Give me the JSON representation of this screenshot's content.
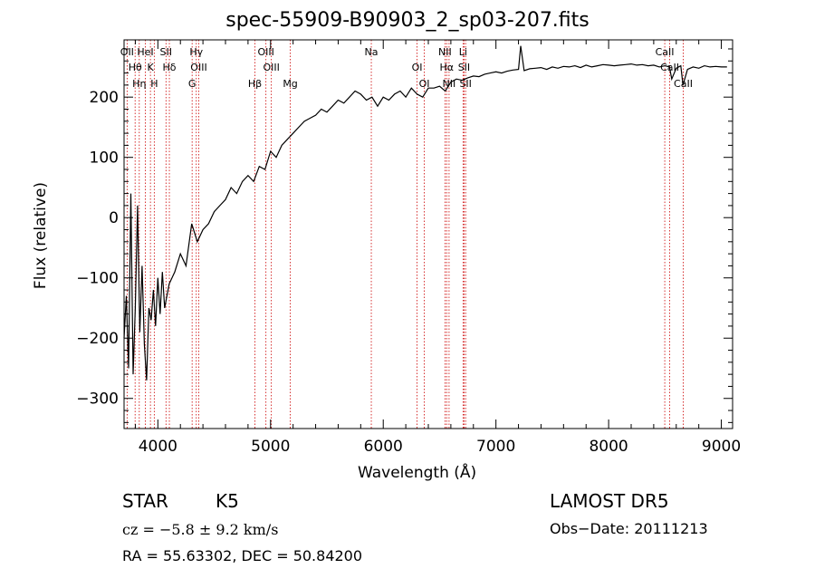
{
  "chart_data": {
    "type": "line",
    "title": "spec-55909-B90903_2_sp03-207.fits",
    "xlabel": "Wavelength (Å)",
    "ylabel": "Flux (relative)",
    "xlim": [
      3700,
      9100
    ],
    "ylim": [
      -350,
      295
    ],
    "xticks": [
      4000,
      5000,
      6000,
      7000,
      8000,
      9000
    ],
    "yticks": [
      -300,
      -200,
      -100,
      0,
      100,
      200
    ],
    "grid": false,
    "series": [
      {
        "x": [
          3700,
          3720,
          3740,
          3760,
          3780,
          3800,
          3820,
          3840,
          3860,
          3880,
          3900,
          3920,
          3940,
          3960,
          3980,
          4000,
          4020,
          4040,
          4060,
          4080,
          4100,
          4150,
          4200,
          4250,
          4300,
          4350,
          4400,
          4450,
          4500,
          4550,
          4600,
          4650,
          4700,
          4750,
          4800,
          4850,
          4900,
          4950,
          5000,
          5050,
          5100,
          5150,
          5200,
          5250,
          5300,
          5350,
          5400,
          5450,
          5500,
          5550,
          5600,
          5650,
          5700,
          5750,
          5800,
          5850,
          5900,
          5950,
          6000,
          6050,
          6100,
          6150,
          6200,
          6250,
          6300,
          6350,
          6400,
          6450,
          6500,
          6550,
          6600,
          6650,
          6700,
          6750,
          6800,
          6850,
          6900,
          6950,
          7000,
          7050,
          7100,
          7150,
          7200,
          7220,
          7250,
          7300,
          7350,
          7400,
          7450,
          7500,
          7550,
          7600,
          7650,
          7700,
          7750,
          7800,
          7850,
          7900,
          7950,
          8000,
          8050,
          8100,
          8150,
          8200,
          8250,
          8300,
          8350,
          8400,
          8450,
          8500,
          8540,
          8560,
          8600,
          8640,
          8660,
          8700,
          8750,
          8800,
          8850,
          8900,
          8950,
          9000,
          9050
        ],
        "y": [
          -200,
          -130,
          -250,
          40,
          -260,
          -150,
          20,
          -190,
          -80,
          -210,
          -270,
          -150,
          -170,
          -120,
          -180,
          -100,
          -160,
          -90,
          -150,
          -130,
          -110,
          -90,
          -60,
          -80,
          -10,
          -40,
          -20,
          -10,
          10,
          20,
          30,
          50,
          40,
          60,
          70,
          60,
          85,
          80,
          110,
          100,
          120,
          130,
          140,
          150,
          160,
          165,
          170,
          180,
          175,
          185,
          195,
          190,
          200,
          210,
          205,
          195,
          200,
          185,
          200,
          195,
          205,
          210,
          200,
          215,
          205,
          200,
          215,
          215,
          218,
          210,
          225,
          230,
          228,
          232,
          235,
          234,
          238,
          240,
          242,
          240,
          243,
          245,
          246,
          285,
          244,
          247,
          248,
          249,
          246,
          250,
          248,
          251,
          250,
          252,
          249,
          253,
          250,
          252,
          254,
          253,
          252,
          253,
          254,
          255,
          253,
          254,
          252,
          253,
          250,
          252,
          250,
          230,
          248,
          252,
          220,
          246,
          250,
          248,
          252,
          250,
          251,
          250,
          250
        ]
      }
    ],
    "lines": [
      {
        "x": 3727,
        "label": "OII"
      },
      {
        "x": 3798,
        "label": "Hθ"
      },
      {
        "x": 3835,
        "label": "Hη"
      },
      {
        "x": 3889,
        "label": "HeI"
      },
      {
        "x": 3934,
        "label": "K"
      },
      {
        "x": 3968,
        "label": "H"
      },
      {
        "x": 4072,
        "label": "SII"
      },
      {
        "x": 4102,
        "label": "Hδ"
      },
      {
        "x": 4304,
        "label": "G"
      },
      {
        "x": 4341,
        "label": "Hγ"
      },
      {
        "x": 4363,
        "label": "OIII"
      },
      {
        "x": 4861,
        "label": "Hβ"
      },
      {
        "x": 4959,
        "label": "OIII"
      },
      {
        "x": 5007,
        "label": "OIII"
      },
      {
        "x": 5175,
        "label": "Mg"
      },
      {
        "x": 5894,
        "label": "Na"
      },
      {
        "x": 6300,
        "label": "OI"
      },
      {
        "x": 6364,
        "label": "OI"
      },
      {
        "x": 6548,
        "label": "NII"
      },
      {
        "x": 6563,
        "label": "Hα"
      },
      {
        "x": 6584,
        "label": "NII"
      },
      {
        "x": 6708,
        "label": "Li"
      },
      {
        "x": 6717,
        "label": "SII"
      },
      {
        "x": 6731,
        "label": "SII"
      },
      {
        "x": 8498,
        "label": "CaII"
      },
      {
        "x": 8542,
        "label": "CaII"
      },
      {
        "x": 8662,
        "label": "CaII"
      }
    ]
  },
  "footer": {
    "object": "STAR",
    "subclass": "K5",
    "survey": "LAMOST  DR5",
    "cz": "cz = −5.8 ± 9.2 km/s",
    "obs_date": "Obs−Date: 20111213",
    "coords": "RA =  55.63302, DEC =  50.84200"
  }
}
